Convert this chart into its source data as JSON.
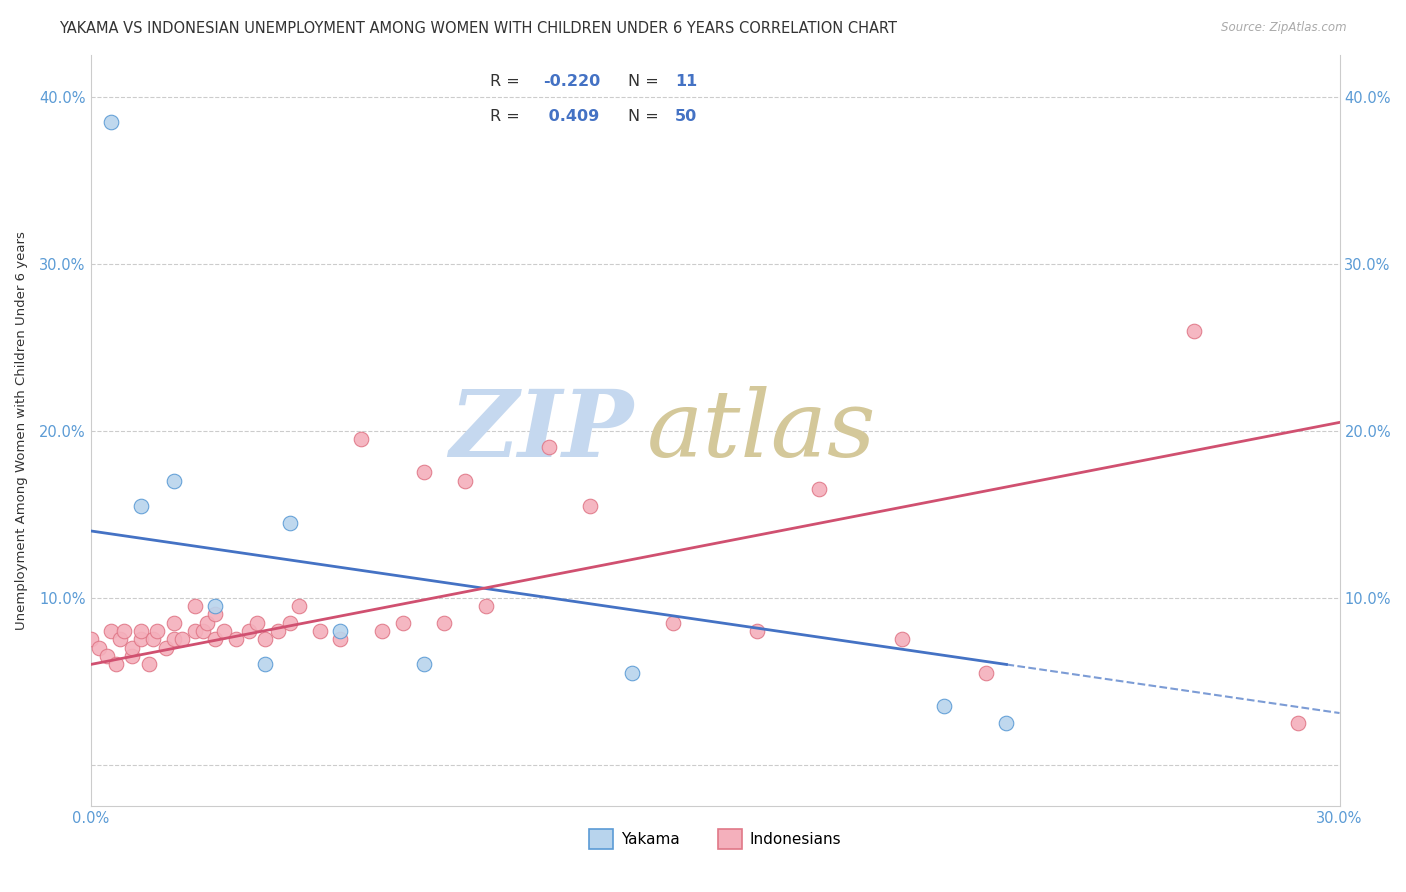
{
  "title": "YAKAMA VS INDONESIAN UNEMPLOYMENT AMONG WOMEN WITH CHILDREN UNDER 6 YEARS CORRELATION CHART",
  "source": "Source: ZipAtlas.com",
  "ylabel": "Unemployment Among Women with Children Under 6 years",
  "xlim": [
    0.0,
    0.3
  ],
  "ylim": [
    -0.025,
    0.425
  ],
  "yticks": [
    0.0,
    0.1,
    0.2,
    0.3,
    0.4
  ],
  "ytick_labels": [
    "",
    "10.0%",
    "20.0%",
    "30.0%",
    "40.0%"
  ],
  "legend_labels": [
    "Yakama",
    "Indonesians"
  ],
  "yakama_R": -0.22,
  "yakama_N": 11,
  "indonesian_R": 0.409,
  "indonesian_N": 50,
  "yakama_fill": "#b8d4ed",
  "yakama_edge": "#5b9bd5",
  "indonesian_fill": "#f4b0bc",
  "indonesian_edge": "#e07888",
  "line_yakama": "#4472c4",
  "line_indonesian": "#d05070",
  "grid_color": "#cccccc",
  "text_color": "#333333",
  "axis_num_color": "#5b9bd5",
  "yakama_x": [
    0.005,
    0.012,
    0.02,
    0.03,
    0.042,
    0.048,
    0.06,
    0.08,
    0.13,
    0.205,
    0.22
  ],
  "yakama_y": [
    0.385,
    0.155,
    0.17,
    0.095,
    0.06,
    0.145,
    0.08,
    0.06,
    0.055,
    0.035,
    0.025
  ],
  "indonesian_x": [
    0.0,
    0.002,
    0.004,
    0.005,
    0.006,
    0.007,
    0.008,
    0.01,
    0.01,
    0.012,
    0.012,
    0.014,
    0.015,
    0.016,
    0.018,
    0.02,
    0.02,
    0.022,
    0.025,
    0.025,
    0.027,
    0.028,
    0.03,
    0.03,
    0.032,
    0.035,
    0.038,
    0.04,
    0.042,
    0.045,
    0.048,
    0.05,
    0.055,
    0.06,
    0.065,
    0.07,
    0.075,
    0.08,
    0.085,
    0.09,
    0.095,
    0.11,
    0.12,
    0.14,
    0.16,
    0.175,
    0.195,
    0.215,
    0.265,
    0.29
  ],
  "indonesian_y": [
    0.075,
    0.07,
    0.065,
    0.08,
    0.06,
    0.075,
    0.08,
    0.065,
    0.07,
    0.075,
    0.08,
    0.06,
    0.075,
    0.08,
    0.07,
    0.075,
    0.085,
    0.075,
    0.08,
    0.095,
    0.08,
    0.085,
    0.075,
    0.09,
    0.08,
    0.075,
    0.08,
    0.085,
    0.075,
    0.08,
    0.085,
    0.095,
    0.08,
    0.075,
    0.195,
    0.08,
    0.085,
    0.175,
    0.085,
    0.17,
    0.095,
    0.19,
    0.155,
    0.085,
    0.08,
    0.165,
    0.075,
    0.055,
    0.26,
    0.025
  ],
  "yakama_line_x0": 0.0,
  "yakama_line_y0": 0.14,
  "yakama_line_x1": 0.22,
  "yakama_line_y1": 0.06,
  "yakama_line_x1_solid": 0.22,
  "yakama_line_x1_dash_end": 0.3,
  "indonesian_line_x0": 0.0,
  "indonesian_line_y0": 0.06,
  "indonesian_line_x1": 0.3,
  "indonesian_line_y1": 0.205
}
